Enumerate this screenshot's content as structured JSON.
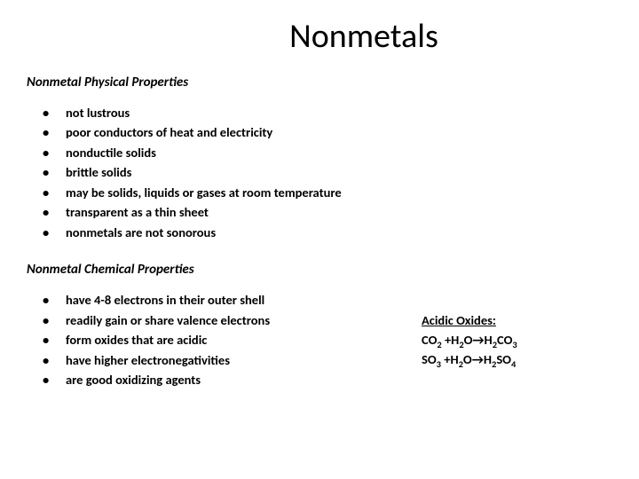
{
  "title": "Nonmetals",
  "physical": {
    "heading": "Nonmetal Physical Properties",
    "items": [
      "not lustrous",
      "poor conductors of heat and electricity",
      "nonductile solids",
      "brittle solids",
      "may be solids, liquids or gases at room temperature",
      "transparent as a thin sheet",
      "nonmetals are not sonorous"
    ]
  },
  "chemical": {
    "heading": "Nonmetal Chemical Properties",
    "items": [
      "have 4-8 electrons in their outer shell",
      "readily gain or share valence electrons",
      "form oxides that are acidic",
      "have higher electronegativities",
      "are good oxidizing agents"
    ]
  },
  "oxides": {
    "title": "Acidic Oxides:",
    "line1": "CO₂ +H₂O→H₂CO₃",
    "line2": "SO₃ +H₂O→H₂SO₄"
  },
  "colors": {
    "background": "#ffffff",
    "text": "#000000"
  },
  "fontsize": {
    "title": 38,
    "heading": 15,
    "body": 14.5
  }
}
